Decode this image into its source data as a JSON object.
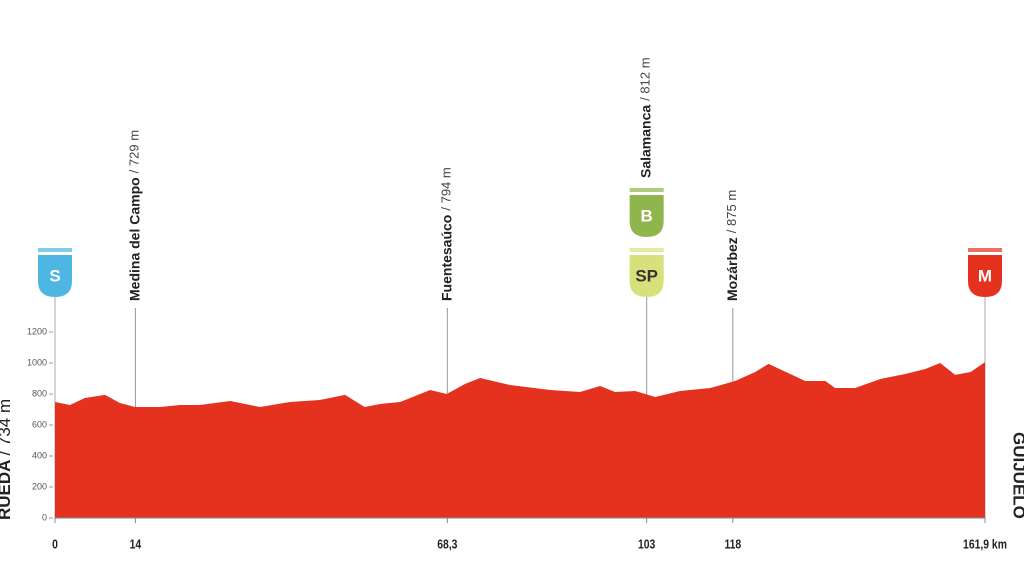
{
  "chart_data": {
    "type": "area",
    "color": "#e5321f",
    "x": [
      0,
      2.6,
      5.2,
      8.7,
      11.3,
      13.9,
      18.3,
      21.8,
      25.2,
      30.5,
      35.7,
      40.9,
      46.1,
      50.5,
      53.9,
      56.5,
      60.1,
      65.3,
      68.2,
      71.4,
      74.0,
      79.2,
      86.2,
      91.4,
      94.9,
      97.5,
      101,
      104.5,
      108.8,
      114.1,
      118.4,
      121.9,
      124.2,
      128.0,
      130.6,
      134.1,
      135.8,
      139.3,
      143.7,
      148.0,
      151.5,
      154.1,
      156.7,
      159.4,
      161.9
    ],
    "values": [
      748,
      729,
      774,
      794,
      742,
      716,
      716,
      729,
      729,
      755,
      716,
      748,
      761,
      794,
      716,
      735,
      748,
      826,
      800,
      865,
      903,
      858,
      826,
      813,
      852,
      813,
      819,
      781,
      819,
      839,
      884,
      942,
      994,
      929,
      884,
      884,
      839,
      839,
      897,
      929,
      961,
      1000,
      923,
      942,
      1006
    ],
    "xlim": [
      0,
      161.9
    ],
    "ylim": [
      0,
      1200
    ],
    "yticks": [
      0,
      200,
      400,
      600,
      800,
      1000,
      1200
    ],
    "xticks": [
      0,
      14,
      {
        "value": 68.3,
        "label": "68,3"
      },
      103,
      118,
      {
        "value": 161.9,
        "label": "161,9 km"
      }
    ],
    "start": {
      "name": "RUEDA",
      "elevation": "/ 734 m",
      "km": 0
    },
    "finish": {
      "name": "GUIJUELO",
      "km": 161.9
    },
    "waypoints": [
      {
        "name": "Medina del Campo",
        "elevation": "/ 729 m",
        "km": 14
      },
      {
        "name": "Fuentesaúco",
        "elevation": "/ 794 m",
        "km": 68.3
      },
      {
        "name": "Salamanca",
        "elevation": "/ 812 m",
        "km": 103
      },
      {
        "name": "Mozárbez",
        "elevation": "/ 875 m",
        "km": 118
      }
    ],
    "markers": [
      {
        "label": "S",
        "km": 0,
        "color": "#4db6e2"
      },
      {
        "label": "SP",
        "km": 103,
        "color": "#d8e07c"
      },
      {
        "label": "B",
        "km": 103,
        "color": "#8fb64c"
      },
      {
        "label": "M",
        "km": 161.9,
        "color": "#e5321f"
      }
    ]
  }
}
